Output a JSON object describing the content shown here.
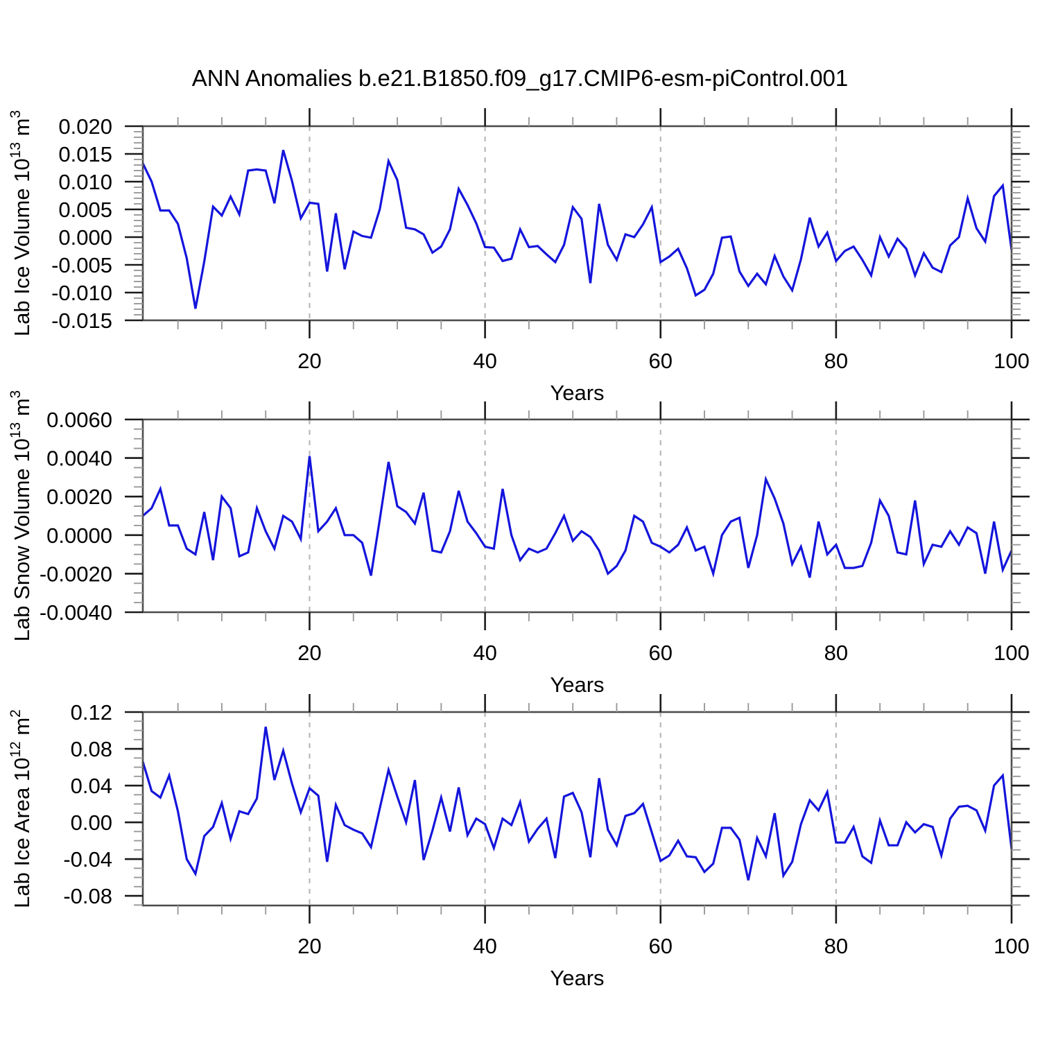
{
  "page": {
    "title": "ANN Anomalies b.e21.B1850.f09_g17.CMIP6-esm-piControl.001",
    "background_color": "#ffffff"
  },
  "style": {
    "line_color": "#1414dc",
    "frame_color": "#4d4d4d",
    "major_tick_color": "#1a1a1a",
    "minor_tick_color": "#999999",
    "grid_color": "#b8b8b8",
    "label_color": "#000000"
  },
  "chart_data": [
    {
      "type": "line",
      "title": "",
      "xlabel": "Years",
      "ylabel": "Lab Ice Volume 10^13 m^3",
      "ylabel_rich": [
        [
          "t",
          "Lab Ice Volume 10"
        ],
        [
          "s",
          "13"
        ],
        [
          "t",
          " m"
        ],
        [
          "s",
          "3"
        ]
      ],
      "xlim": [
        1,
        100
      ],
      "ylim": [
        -0.015,
        0.02
      ],
      "grid": true,
      "grid_x_years": [
        20,
        40,
        60,
        80
      ],
      "x_tick_values": [
        20,
        40,
        60,
        80,
        100
      ],
      "x_tick_labels": [
        "20",
        "40",
        "60",
        "80",
        "100"
      ],
      "x_minor_step": 5,
      "y_tick_values": [
        0.02,
        0.015,
        0.01,
        0.005,
        0.0,
        -0.005,
        -0.01,
        -0.015
      ],
      "y_tick_labels": [
        "0.020",
        "0.015",
        "0.010",
        "0.005",
        "0.000",
        "-0.005",
        "-0.010",
        "-0.015"
      ],
      "y_minor_step": 0.001,
      "x_years_start": 1,
      "values": [
        0.0133,
        0.01,
        0.0048,
        0.0048,
        0.0024,
        -0.0038,
        -0.0129,
        -0.0044,
        0.0055,
        0.0039,
        0.0073,
        0.0041,
        0.012,
        0.0122,
        0.012,
        0.0061,
        0.0157,
        0.0101,
        0.0034,
        0.0062,
        0.006,
        -0.0062,
        0.0043,
        -0.0058,
        0.001,
        0.0002,
        -0.0001,
        0.005,
        0.0137,
        0.0103,
        0.0017,
        0.0014,
        0.0005,
        -0.0028,
        -0.0017,
        0.0014,
        0.0087,
        0.0058,
        0.0025,
        -0.0018,
        -0.0019,
        -0.0043,
        -0.0039,
        0.0014,
        -0.0018,
        -0.0016,
        -0.0031,
        -0.0045,
        -0.0014,
        0.0054,
        0.0033,
        -0.0083,
        0.006,
        -0.0014,
        -0.0041,
        0.0005,
        0.0,
        0.0023,
        0.0054,
        -0.0045,
        -0.0035,
        -0.0021,
        -0.0056,
        -0.0105,
        -0.0095,
        -0.0066,
        -0.0001,
        0.0001,
        -0.0062,
        -0.0088,
        -0.0066,
        -0.0085,
        -0.0034,
        -0.0071,
        -0.0096,
        -0.004,
        0.0035,
        -0.0017,
        0.0008,
        -0.0043,
        -0.0025,
        -0.0017,
        -0.0041,
        -0.0069,
        0.0,
        -0.0035,
        -0.0003,
        -0.0021,
        -0.0069,
        -0.0029,
        -0.0055,
        -0.0063,
        -0.0015,
        0.0,
        0.007,
        0.0016,
        -0.0008,
        0.0074,
        0.0093,
        -0.0023
      ]
    },
    {
      "type": "line",
      "title": "",
      "xlabel": "Years",
      "ylabel": "Lab Snow Volume 10^13 m^3",
      "ylabel_rich": [
        [
          "t",
          "Lab Snow Volume 10"
        ],
        [
          "s",
          "13"
        ],
        [
          "t",
          " m"
        ],
        [
          "s",
          "3"
        ]
      ],
      "xlim": [
        1,
        100
      ],
      "ylim": [
        -0.004,
        0.006
      ],
      "grid": true,
      "grid_x_years": [
        20,
        40,
        60,
        80
      ],
      "x_tick_values": [
        20,
        40,
        60,
        80,
        100
      ],
      "x_tick_labels": [
        "20",
        "40",
        "60",
        "80",
        "100"
      ],
      "x_minor_step": 5,
      "y_tick_values": [
        0.006,
        0.004,
        0.002,
        0.0,
        -0.002,
        -0.004
      ],
      "y_tick_labels": [
        "0.0060",
        "0.0040",
        "0.0020",
        "0.0000",
        "-0.0020",
        "-0.0040"
      ],
      "y_minor_step": 0.0005,
      "x_years_start": 1,
      "values": [
        0.001,
        0.0014,
        0.0024,
        0.0005,
        0.0005,
        -0.0007,
        -0.001,
        0.0012,
        -0.0013,
        0.002,
        0.0014,
        -0.0011,
        -0.0009,
        0.0014,
        0.0002,
        -0.0007,
        0.001,
        0.0007,
        -0.0002,
        0.0041,
        0.0002,
        0.0007,
        0.0014,
        0.0,
        0.0,
        -0.0004,
        -0.0021,
        0.0008,
        0.0038,
        0.0015,
        0.0012,
        0.0006,
        0.0022,
        -0.0008,
        -0.0009,
        0.0002,
        0.0023,
        0.0007,
        0.0001,
        -0.0006,
        -0.0007,
        0.0024,
        0.0,
        -0.0013,
        -0.0007,
        -0.0009,
        -0.0007,
        0.0001,
        0.001,
        -0.0003,
        0.0002,
        -0.0001,
        -0.0008,
        -0.002,
        -0.0016,
        -0.0008,
        0.001,
        0.0007,
        -0.0004,
        -0.0006,
        -0.0009,
        -0.0005,
        0.0004,
        -0.0008,
        -0.0006,
        -0.002,
        0.0,
        0.0007,
        0.0009,
        -0.0017,
        0.0,
        0.0029,
        0.0019,
        0.0006,
        -0.0015,
        -0.0006,
        -0.0022,
        0.0007,
        -0.001,
        -0.0005,
        -0.0017,
        -0.0017,
        -0.0016,
        -0.0004,
        0.0018,
        0.001,
        -0.0009,
        -0.001,
        0.0018,
        -0.0015,
        -0.0005,
        -0.0006,
        0.0002,
        -0.0005,
        0.0004,
        0.0001,
        -0.002,
        0.0007,
        -0.0018,
        -0.0008
      ]
    },
    {
      "type": "line",
      "title": "",
      "xlabel": "Years",
      "ylabel": "Lab Ice Area 10^12 m^2",
      "ylabel_rich": [
        [
          "t",
          "Lab Ice Area 10"
        ],
        [
          "s",
          "12"
        ],
        [
          "t",
          " m"
        ],
        [
          "s",
          "2"
        ]
      ],
      "xlim": [
        1,
        100
      ],
      "ylim": [
        -0.0905,
        0.12
      ],
      "grid": true,
      "grid_x_years": [
        20,
        40,
        60,
        80
      ],
      "x_tick_values": [
        20,
        40,
        60,
        80,
        100
      ],
      "x_tick_labels": [
        "20",
        "40",
        "60",
        "80",
        "100"
      ],
      "x_minor_step": 5,
      "y_tick_values": [
        0.12,
        0.08,
        0.04,
        0.0,
        -0.04,
        -0.08
      ],
      "y_tick_labels": [
        "0.12",
        "0.08",
        "0.04",
        "0.00",
        "-0.04",
        "-0.08"
      ],
      "y_minor_step": 0.01,
      "x_years_start": 1,
      "values": [
        0.066,
        0.034,
        0.027,
        0.051,
        0.012,
        -0.04,
        -0.056,
        -0.015,
        -0.005,
        0.021,
        -0.018,
        0.012,
        0.009,
        0.026,
        0.104,
        0.046,
        0.078,
        0.042,
        0.011,
        0.037,
        0.029,
        -0.043,
        0.019,
        -0.003,
        -0.008,
        -0.012,
        -0.027,
        0.015,
        0.057,
        0.028,
        0.0,
        0.046,
        -0.041,
        -0.009,
        0.027,
        -0.01,
        0.038,
        -0.014,
        0.004,
        -0.002,
        -0.028,
        0.004,
        -0.003,
        0.022,
        -0.021,
        -0.007,
        0.004,
        -0.039,
        0.028,
        0.032,
        0.011,
        -0.038,
        0.048,
        -0.008,
        -0.025,
        0.007,
        0.01,
        0.02,
        -0.011,
        -0.042,
        -0.036,
        -0.02,
        -0.037,
        -0.038,
        -0.054,
        -0.045,
        -0.006,
        -0.006,
        -0.019,
        -0.063,
        -0.017,
        -0.037,
        0.01,
        -0.058,
        -0.043,
        -0.002,
        0.024,
        0.013,
        0.033,
        -0.022,
        -0.022,
        -0.005,
        -0.037,
        -0.044,
        0.002,
        -0.025,
        -0.025,
        0.0,
        -0.011,
        -0.002,
        -0.005,
        -0.036,
        0.004,
        0.017,
        0.018,
        0.013,
        -0.009,
        0.04,
        0.051,
        -0.029
      ]
    }
  ]
}
